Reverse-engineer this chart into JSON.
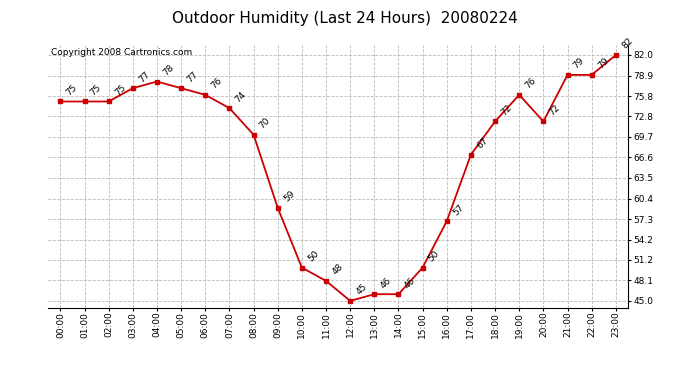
{
  "title": "Outdoor Humidity (Last 24 Hours)  20080224",
  "copyright": "Copyright 2008 Cartronics.com",
  "hours": [
    0,
    1,
    2,
    3,
    4,
    5,
    6,
    7,
    8,
    9,
    10,
    11,
    12,
    13,
    14,
    15,
    16,
    17,
    18,
    19,
    20,
    21,
    22,
    23
  ],
  "values": [
    75,
    75,
    75,
    77,
    78,
    77,
    76,
    74,
    70,
    59,
    50,
    48,
    45,
    46,
    46,
    50,
    57,
    67,
    72,
    76,
    72,
    79,
    79,
    82
  ],
  "xlabels": [
    "00:00",
    "01:00",
    "02:00",
    "03:00",
    "04:00",
    "05:00",
    "06:00",
    "07:00",
    "08:00",
    "09:00",
    "10:00",
    "11:00",
    "12:00",
    "13:00",
    "14:00",
    "15:00",
    "16:00",
    "17:00",
    "18:00",
    "19:00",
    "20:00",
    "21:00",
    "22:00",
    "23:00"
  ],
  "yticks": [
    45.0,
    48.1,
    51.2,
    54.2,
    57.3,
    60.4,
    63.5,
    66.6,
    69.7,
    72.8,
    75.8,
    78.9,
    82.0
  ],
  "ylim": [
    44.0,
    83.5
  ],
  "xlim": [
    -0.5,
    23.5
  ],
  "line_color": "#cc0000",
  "marker_color": "#cc0000",
  "grid_color": "#bbbbbb",
  "bg_color": "#ffffff",
  "title_fontsize": 11,
  "label_fontsize": 6.5,
  "copyright_fontsize": 6.5,
  "data_label_fontsize": 6.5
}
